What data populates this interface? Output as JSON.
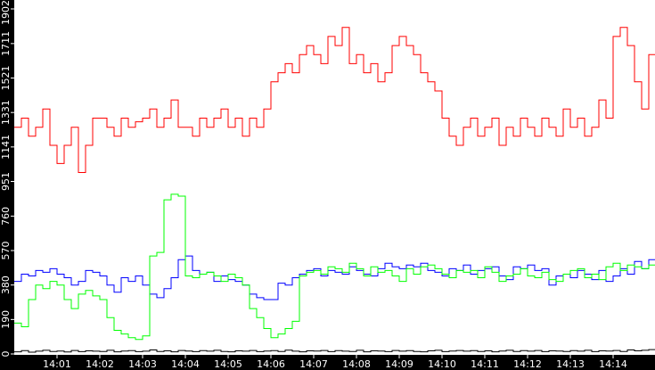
{
  "chart_data": {
    "type": "line",
    "title": "",
    "xlabel": "",
    "ylabel": "",
    "ylim": [
      0,
      1902
    ],
    "y_ticks": [
      "0",
      "190",
      "380",
      "570",
      "760",
      "951",
      "1141",
      "1331",
      "1521",
      "1711",
      "1902"
    ],
    "x_ticks": [
      "14:01",
      "14:02",
      "14:03",
      "14:04",
      "14:05",
      "14:06",
      "14:07",
      "14:08",
      "14:09",
      "14:10",
      "14:11",
      "14:12",
      "14:13",
      "14:14"
    ],
    "x_start": "14:00:00",
    "x_step_seconds": 10,
    "grid": false,
    "background": "#ffffff",
    "frame_color": "#000000",
    "series": [
      {
        "color": "#ff0000",
        "values": [
          1250,
          1300,
          1200,
          1250,
          1350,
          1150,
          1050,
          1150,
          1250,
          1000,
          1150,
          1300,
          1300,
          1250,
          1200,
          1300,
          1250,
          1280,
          1300,
          1350,
          1250,
          1300,
          1400,
          1250,
          1250,
          1200,
          1300,
          1250,
          1300,
          1350,
          1250,
          1300,
          1200,
          1300,
          1250,
          1350,
          1500,
          1550,
          1600,
          1550,
          1650,
          1700,
          1650,
          1600,
          1750,
          1700,
          1800,
          1600,
          1650,
          1550,
          1600,
          1500,
          1550,
          1700,
          1750,
          1700,
          1650,
          1550,
          1500,
          1450,
          1300,
          1200,
          1150,
          1250,
          1300,
          1200,
          1250,
          1300,
          1150,
          1250,
          1200,
          1300,
          1250,
          1200,
          1300,
          1250,
          1200,
          1350,
          1250,
          1300,
          1200,
          1250,
          1400,
          1300,
          1750,
          1800,
          1700,
          1500,
          1350,
          1650
        ]
      },
      {
        "color": "#0000ff",
        "values": [
          400,
          440,
          430,
          460,
          450,
          470,
          440,
          420,
          380,
          400,
          460,
          450,
          430,
          380,
          340,
          420,
          400,
          430,
          380,
          330,
          310,
          360,
          420,
          520,
          540,
          460,
          440,
          450,
          400,
          430,
          410,
          400,
          380,
          330,
          310,
          300,
          300,
          390,
          380,
          420,
          440,
          460,
          470,
          430,
          460,
          450,
          440,
          480,
          460,
          440,
          430,
          470,
          500,
          480,
          470,
          490,
          480,
          500,
          460,
          450,
          430,
          470,
          460,
          490,
          440,
          460,
          470,
          480,
          430,
          410,
          480,
          470,
          490,
          460,
          470,
          380,
          430,
          440,
          420,
          460,
          440,
          410,
          460,
          400,
          430,
          470,
          440,
          510,
          470,
          520
        ]
      },
      {
        "color": "#00ff00",
        "values": [
          170,
          150,
          300,
          380,
          360,
          400,
          380,
          300,
          250,
          330,
          350,
          320,
          300,
          200,
          130,
          110,
          90,
          80,
          100,
          540,
          560,
          850,
          880,
          870,
          430,
          420,
          440,
          450,
          430,
          400,
          440,
          420,
          380,
          250,
          200,
          140,
          90,
          110,
          140,
          180,
          430,
          450,
          460,
          440,
          480,
          470,
          450,
          500,
          470,
          430,
          480,
          450,
          460,
          430,
          400,
          470,
          440,
          480,
          490,
          470,
          440,
          420,
          460,
          450,
          460,
          420,
          480,
          450,
          400,
          430,
          440,
          470,
          430,
          420,
          450,
          410,
          400,
          440,
          460,
          470,
          420,
          440,
          410,
          480,
          500,
          460,
          490,
          480,
          470,
          490
        ]
      },
      {
        "color": "#000000",
        "values": [
          12,
          18,
          10,
          15,
          20,
          14,
          16,
          11,
          19,
          13,
          17,
          15,
          14,
          20,
          12,
          16,
          18,
          13,
          15,
          22,
          14,
          17,
          12,
          19,
          16,
          13,
          18,
          15,
          20,
          14,
          12,
          17,
          15,
          19,
          13,
          16,
          18,
          14,
          21,
          15,
          12,
          17,
          16,
          19,
          13,
          18,
          15,
          14,
          20,
          12,
          17,
          16,
          13,
          19,
          15,
          18,
          14,
          12,
          17,
          20,
          13,
          16,
          19,
          15,
          18,
          14,
          17,
          12,
          16,
          20,
          14,
          18,
          15,
          19,
          13,
          17,
          16,
          14,
          18,
          15,
          20,
          13,
          17,
          16,
          19,
          14,
          22,
          17,
          20,
          24
        ]
      }
    ]
  }
}
